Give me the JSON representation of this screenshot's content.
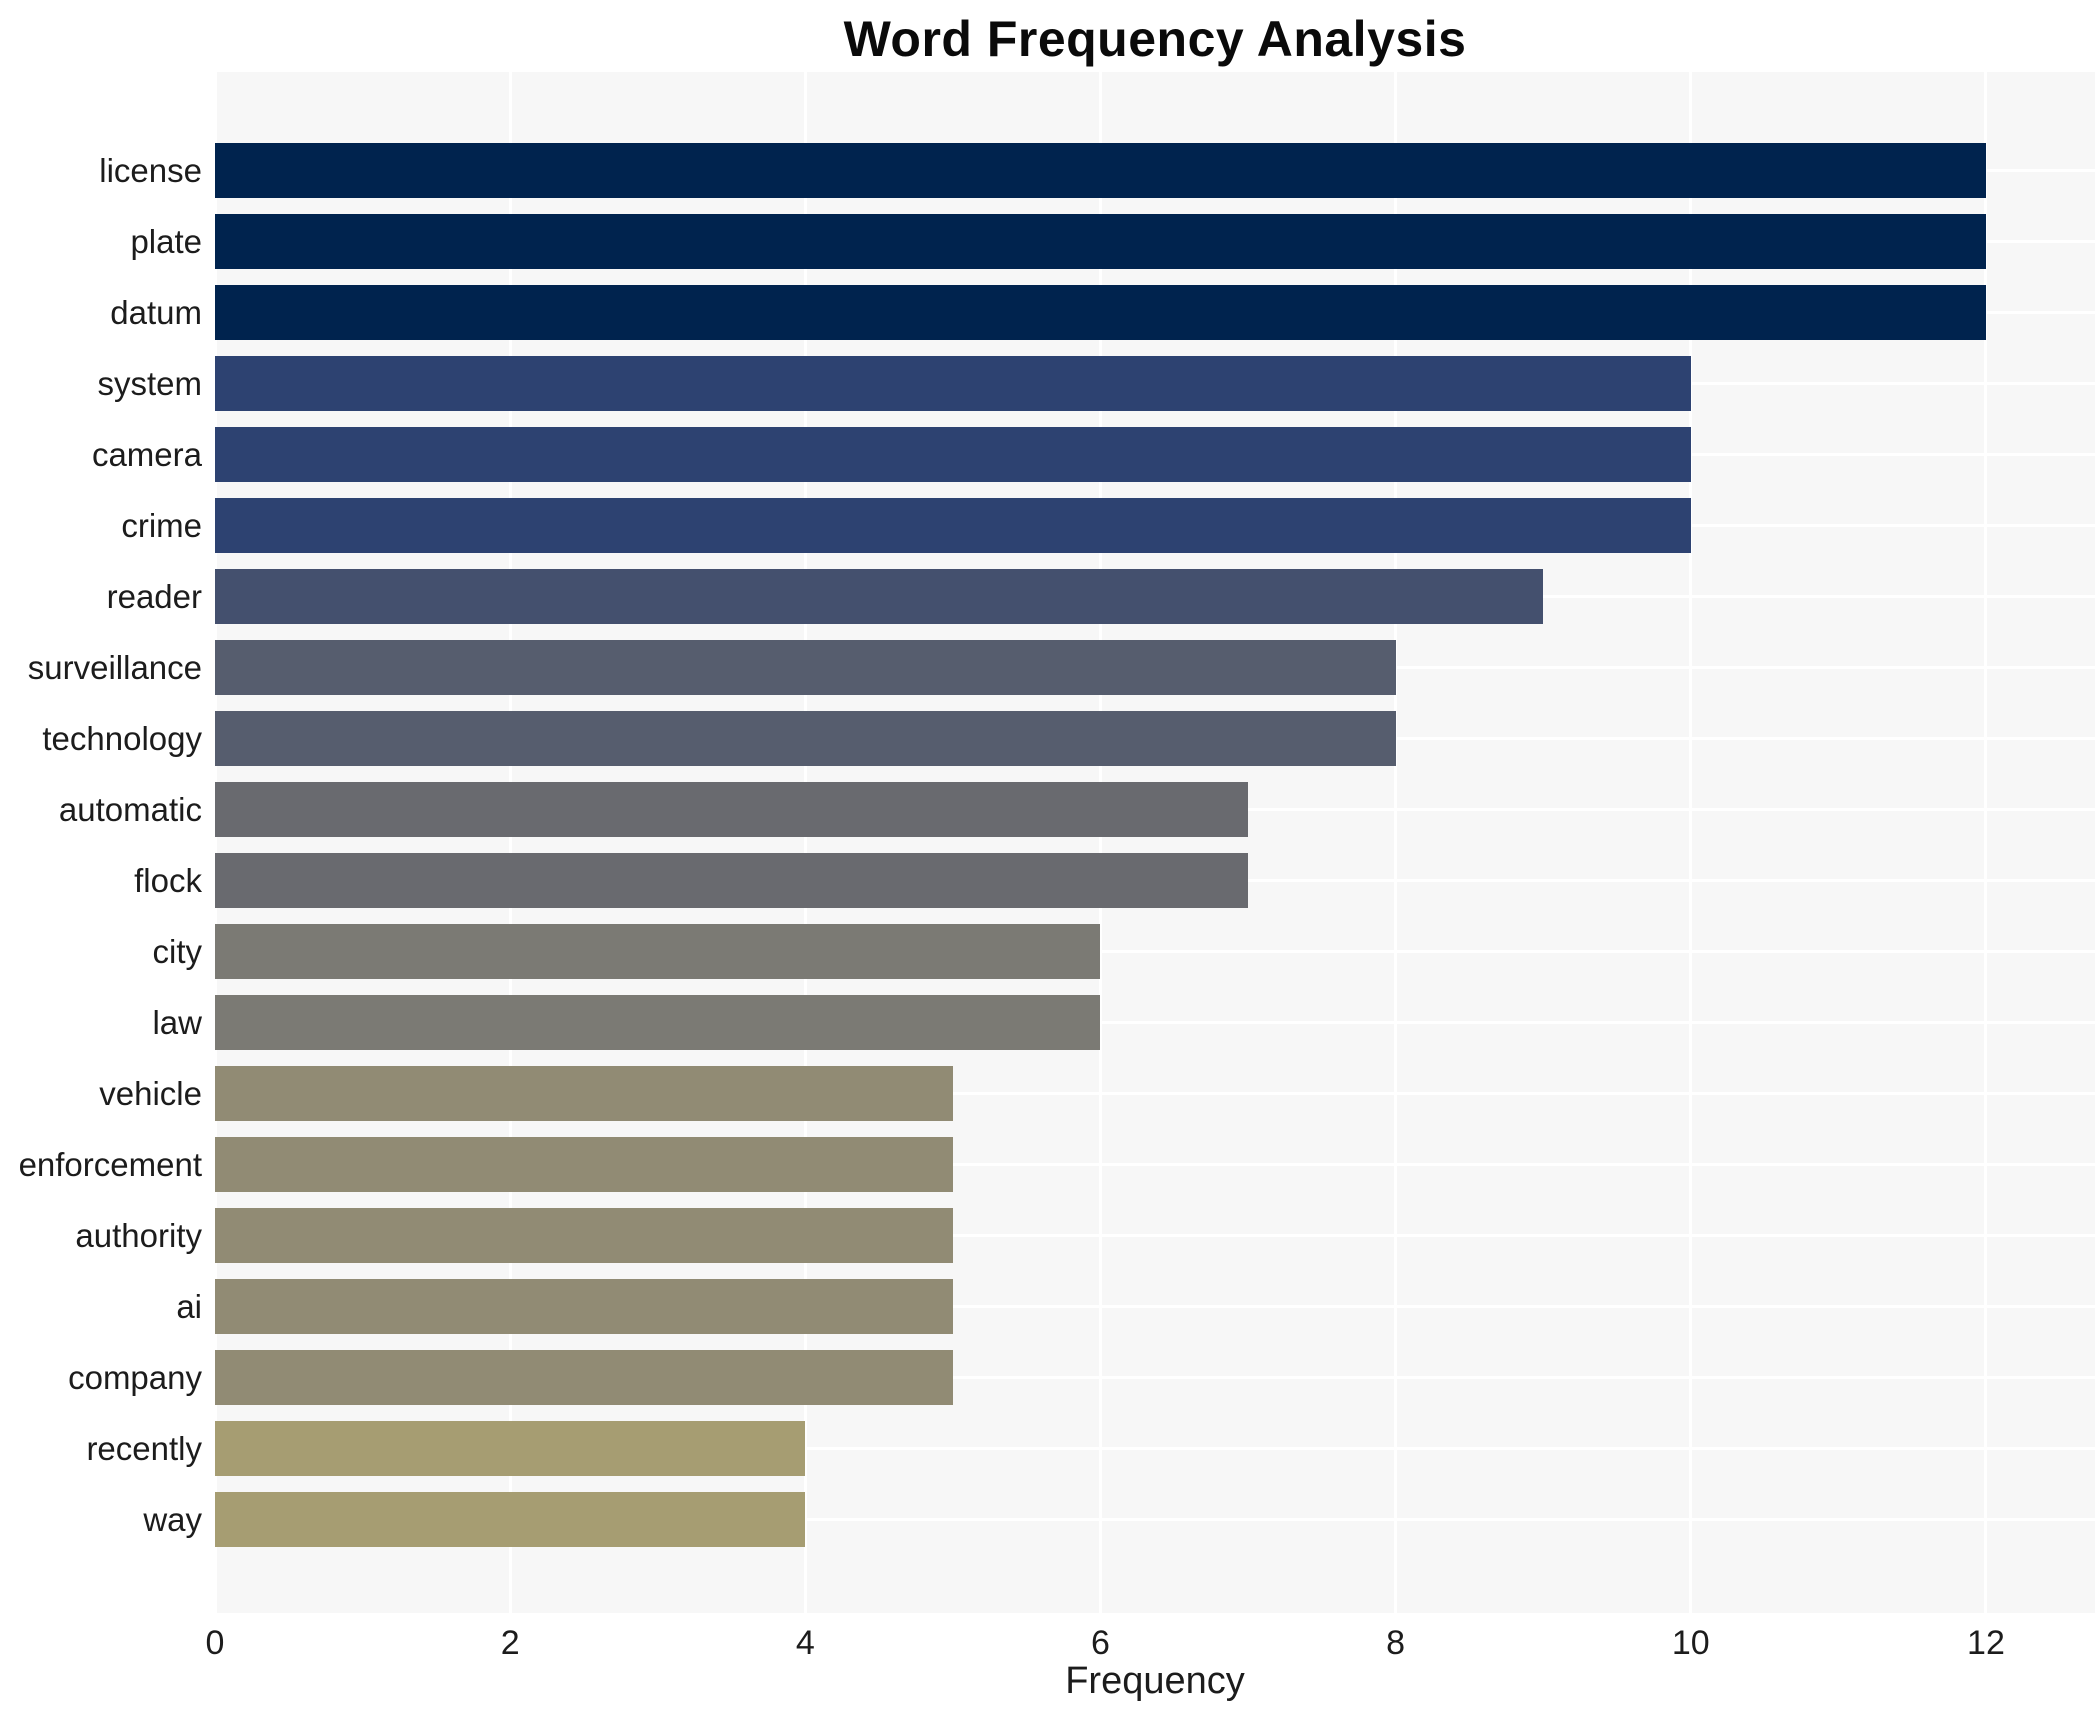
{
  "chart_data": {
    "type": "bar",
    "orientation": "horizontal",
    "title": "Word Frequency Analysis",
    "xlabel": "Frequency",
    "ylabel": "",
    "xlim": [
      0,
      12.74
    ],
    "x_ticks": [
      0,
      2,
      4,
      6,
      8,
      10,
      12
    ],
    "grid": "white gridlines on light-gray panel, vertical at x ticks and horizontal at category centers",
    "legend": "none",
    "categories": [
      "license",
      "plate",
      "datum",
      "system",
      "camera",
      "crime",
      "reader",
      "surveillance",
      "technology",
      "automatic",
      "flock",
      "city",
      "law",
      "vehicle",
      "enforcement",
      "authority",
      "ai",
      "company",
      "recently",
      "way"
    ],
    "values": [
      12,
      12,
      12,
      10,
      10,
      10,
      9,
      8,
      8,
      7,
      7,
      6,
      6,
      5,
      5,
      5,
      5,
      5,
      4,
      4
    ],
    "bar_colors": [
      "#00234e",
      "#00234e",
      "#00234e",
      "#2d4271",
      "#2d4271",
      "#2d4271",
      "#44506e",
      "#565d6e",
      "#565d6e",
      "#696a6f",
      "#696a6f",
      "#7b7a74",
      "#7b7a74",
      "#918b74",
      "#918b74",
      "#918b74",
      "#918b74",
      "#918b74",
      "#a69d72",
      "#a69d72"
    ]
  },
  "style_colors": {
    "panel_background": "#f7f7f7",
    "figure_background": "#ffffff",
    "gridline": "#ffffff",
    "text": "#1c1c1c",
    "title_text": "#0a0a0a"
  }
}
